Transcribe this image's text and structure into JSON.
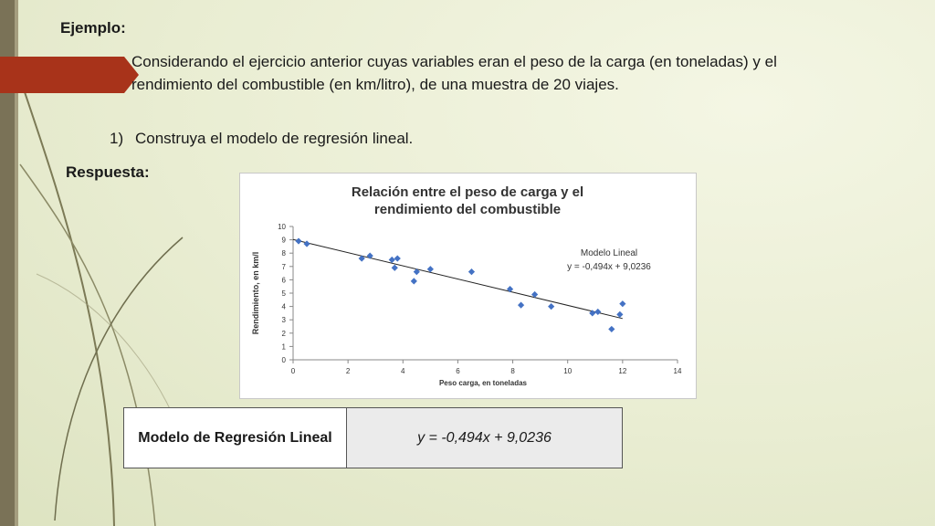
{
  "slide": {
    "title": "Ejemplo:",
    "paragraph": "Considerando el ejercicio anterior cuyas variables eran el peso de la carga (en toneladas) y el rendimiento del combustible (en km/litro), de una muestra de 20 viajes.",
    "item_number": "1)",
    "item_text": "Construya el modelo de regresión lineal.",
    "answer_label": "Respuesta:"
  },
  "chart_data": {
    "type": "scatter",
    "title_line1": "Relación entre el peso de carga y el",
    "title_line2": "rendimiento del combustible",
    "xlabel": "Peso carga,  en toneladas",
    "ylabel": "Rendimiento, en km/l",
    "xlim": [
      0,
      14
    ],
    "ylim": [
      0,
      10
    ],
    "xticks": [
      0,
      2,
      4,
      6,
      8,
      10,
      12,
      14
    ],
    "yticks": [
      0,
      1,
      2,
      3,
      4,
      5,
      6,
      7,
      8,
      9,
      10
    ],
    "point_color": "#4472c4",
    "points": [
      {
        "x": 0.2,
        "y": 8.9
      },
      {
        "x": 0.5,
        "y": 8.7
      },
      {
        "x": 2.5,
        "y": 7.6
      },
      {
        "x": 2.8,
        "y": 7.8
      },
      {
        "x": 3.6,
        "y": 7.5
      },
      {
        "x": 3.8,
        "y": 7.6
      },
      {
        "x": 3.7,
        "y": 6.9
      },
      {
        "x": 4.5,
        "y": 6.6
      },
      {
        "x": 5.0,
        "y": 6.8
      },
      {
        "x": 4.4,
        "y": 5.9
      },
      {
        "x": 6.5,
        "y": 6.6
      },
      {
        "x": 7.9,
        "y": 5.3
      },
      {
        "x": 8.3,
        "y": 4.1
      },
      {
        "x": 8.8,
        "y": 4.9
      },
      {
        "x": 9.4,
        "y": 4.0
      },
      {
        "x": 10.9,
        "y": 3.5
      },
      {
        "x": 11.1,
        "y": 3.6
      },
      {
        "x": 11.6,
        "y": 2.3
      },
      {
        "x": 12.0,
        "y": 4.2
      },
      {
        "x": 11.9,
        "y": 3.4
      }
    ],
    "trendline": {
      "slope": -0.494,
      "intercept": 9.0236,
      "x_start": 0,
      "x_end": 12,
      "label_line1": "Modelo Lineal",
      "label_line2": "y = -0,494x + 9,0236"
    },
    "grid": false
  },
  "summary": {
    "header": "Modelo de Regresión Lineal",
    "value": "y = -0,494x + 9,0236"
  }
}
